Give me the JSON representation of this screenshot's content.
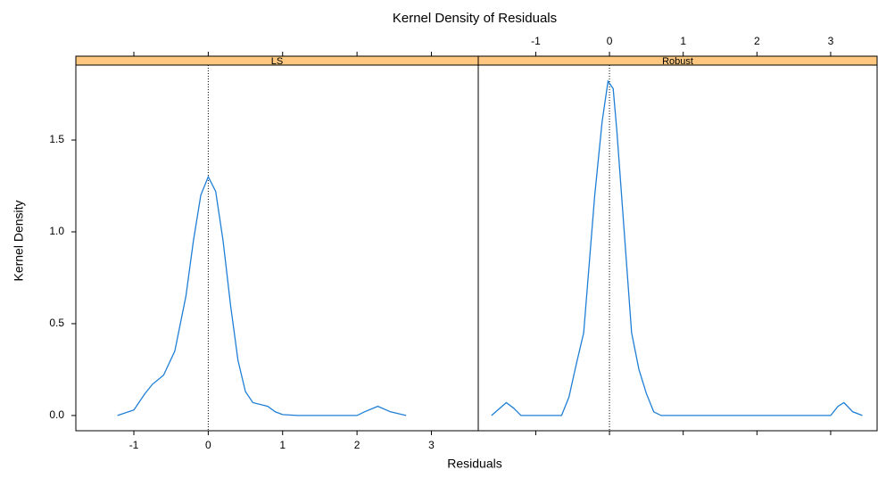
{
  "chart_data": {
    "type": "line",
    "title": "Kernel Density of Residuals",
    "xlabel": "Residuals",
    "ylabel": "Kernel Density",
    "color": "#1f7fd6",
    "strip_color": "#ffc77f",
    "vline": 0,
    "xlim": [
      -1.78,
      3.63
    ],
    "xticks": [
      -1,
      0,
      1,
      2,
      3
    ],
    "ylim": [
      -0.083,
      1.908
    ],
    "yticks": [
      {
        "value": 0,
        "label": "0.0"
      },
      0.5,
      {
        "value": 1,
        "label": "1.0"
      },
      1.5
    ],
    "series": [
      {
        "name": "LS",
        "x": [
          -1.22,
          -1.0,
          -0.85,
          -0.75,
          -0.6,
          -0.45,
          -0.3,
          -0.2,
          -0.1,
          0,
          0.1,
          0.2,
          0.3,
          0.4,
          0.5,
          0.6,
          0.8,
          0.9,
          1.0,
          1.2,
          2.0,
          2.1,
          2.28,
          2.45,
          2.66
        ],
        "values": [
          0.0,
          0.03,
          0.12,
          0.17,
          0.22,
          0.35,
          0.65,
          0.95,
          1.2,
          1.3,
          1.22,
          0.95,
          0.6,
          0.3,
          0.13,
          0.07,
          0.05,
          0.02,
          0.005,
          0.0,
          0.0,
          0.02,
          0.05,
          0.02,
          0.0
        ]
      },
      {
        "name": "Robust",
        "x": [
          -1.6,
          -1.4,
          -1.3,
          -1.2,
          -0.65,
          -0.55,
          -0.45,
          -0.35,
          -0.3,
          -0.2,
          -0.1,
          -0.02,
          0.05,
          0.1,
          0.2,
          0.3,
          0.4,
          0.5,
          0.6,
          0.7,
          3.0,
          3.1,
          3.18,
          3.3,
          3.43
        ],
        "values": [
          0.0,
          0.07,
          0.04,
          0.0,
          0.0,
          0.1,
          0.28,
          0.45,
          0.7,
          1.2,
          1.6,
          1.82,
          1.78,
          1.55,
          1.0,
          0.45,
          0.25,
          0.12,
          0.02,
          0.0,
          0.0,
          0.05,
          0.07,
          0.02,
          0.0
        ]
      }
    ]
  }
}
